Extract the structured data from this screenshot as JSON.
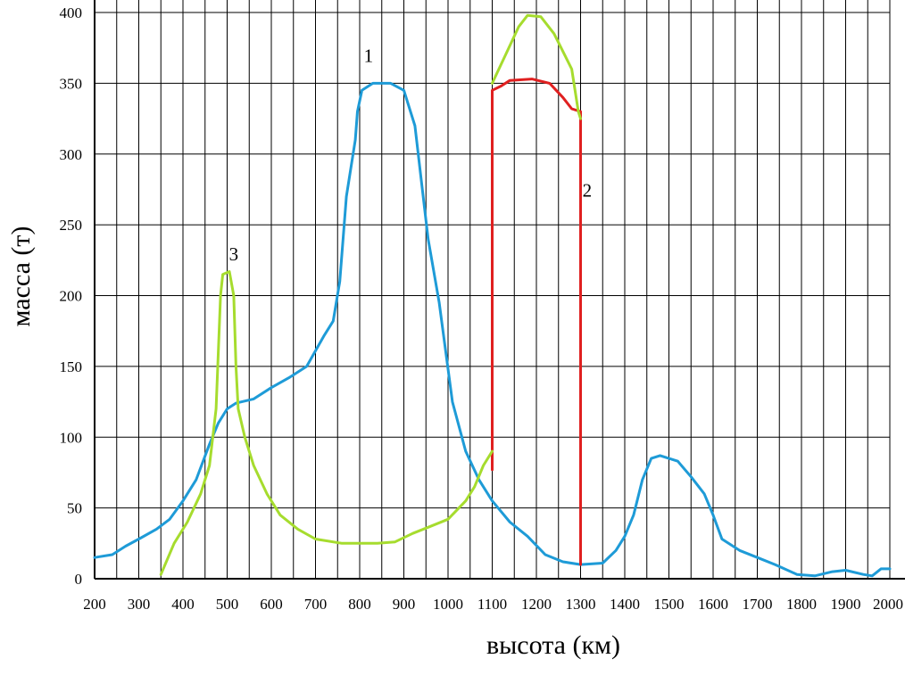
{
  "chart_data": {
    "type": "line",
    "title": "",
    "xlabel": "высота (км)",
    "ylabel": "масса (т)",
    "xlim": [
      200,
      2000
    ],
    "ylim": [
      0,
      400
    ],
    "x_ticks": [
      "200",
      "300",
      "400",
      "500",
      "600",
      "700",
      "800",
      "900",
      "1000",
      "1100",
      "1200",
      "1300",
      "1400",
      "1500",
      "1600",
      "1700",
      "1800",
      "1900",
      "2000"
    ],
    "y_ticks": [
      "0",
      "50",
      "100",
      "150",
      "200",
      "250",
      "300",
      "350",
      "400"
    ],
    "grid": true,
    "legend": "none",
    "series": [
      {
        "name": "1",
        "color": "#1e9bd7",
        "points": [
          [
            200,
            15
          ],
          [
            240,
            17
          ],
          [
            270,
            23
          ],
          [
            300,
            28
          ],
          [
            340,
            35
          ],
          [
            370,
            42
          ],
          [
            400,
            55
          ],
          [
            430,
            70
          ],
          [
            460,
            95
          ],
          [
            480,
            110
          ],
          [
            500,
            120
          ],
          [
            520,
            124
          ],
          [
            560,
            127
          ],
          [
            600,
            135
          ],
          [
            640,
            142
          ],
          [
            680,
            150
          ],
          [
            720,
            172
          ],
          [
            740,
            182
          ],
          [
            755,
            210
          ],
          [
            770,
            270
          ],
          [
            780,
            290
          ],
          [
            790,
            310
          ],
          [
            795,
            330
          ],
          [
            805,
            345
          ],
          [
            830,
            350
          ],
          [
            870,
            350
          ],
          [
            900,
            345
          ],
          [
            925,
            320
          ],
          [
            940,
            280
          ],
          [
            955,
            240
          ],
          [
            980,
            195
          ],
          [
            1010,
            125
          ],
          [
            1040,
            90
          ],
          [
            1070,
            70
          ],
          [
            1100,
            55
          ],
          [
            1140,
            40
          ],
          [
            1180,
            30
          ],
          [
            1220,
            17
          ],
          [
            1260,
            12
          ],
          [
            1300,
            10
          ],
          [
            1350,
            11
          ],
          [
            1380,
            20
          ],
          [
            1400,
            30
          ],
          [
            1420,
            45
          ],
          [
            1440,
            70
          ],
          [
            1460,
            85
          ],
          [
            1480,
            87
          ],
          [
            1520,
            83
          ],
          [
            1550,
            72
          ],
          [
            1580,
            60
          ],
          [
            1600,
            45
          ],
          [
            1620,
            28
          ],
          [
            1660,
            20
          ],
          [
            1700,
            15
          ],
          [
            1740,
            10
          ],
          [
            1790,
            3
          ],
          [
            1830,
            2
          ],
          [
            1870,
            5
          ],
          [
            1900,
            6
          ],
          [
            1940,
            3
          ],
          [
            1960,
            2
          ],
          [
            1980,
            7
          ],
          [
            2000,
            7
          ]
        ]
      },
      {
        "name": "2",
        "color": "#e02020",
        "points": [
          [
            1100,
            77
          ],
          [
            1100,
            345
          ],
          [
            1120,
            348
          ],
          [
            1140,
            352
          ],
          [
            1190,
            353
          ],
          [
            1230,
            350
          ],
          [
            1260,
            340
          ],
          [
            1280,
            332
          ],
          [
            1300,
            330
          ],
          [
            1300,
            10
          ]
        ]
      },
      {
        "name": "3",
        "color": "#a6dc2e",
        "points": [
          [
            350,
            3
          ],
          [
            380,
            25
          ],
          [
            410,
            40
          ],
          [
            440,
            60
          ],
          [
            460,
            80
          ],
          [
            475,
            120
          ],
          [
            480,
            160
          ],
          [
            485,
            200
          ],
          [
            490,
            215
          ],
          [
            505,
            217
          ],
          [
            515,
            200
          ],
          [
            520,
            150
          ],
          [
            525,
            120
          ],
          [
            540,
            100
          ],
          [
            560,
            80
          ],
          [
            590,
            60
          ],
          [
            620,
            45
          ],
          [
            660,
            35
          ],
          [
            700,
            28
          ],
          [
            760,
            25
          ],
          [
            840,
            25
          ],
          [
            880,
            26
          ],
          [
            920,
            32
          ],
          [
            960,
            37
          ],
          [
            1000,
            42
          ],
          [
            1040,
            55
          ],
          [
            1060,
            65
          ],
          [
            1080,
            80
          ],
          [
            1100,
            90
          ]
        ]
      },
      {
        "name": "3",
        "color": "#a6dc2e",
        "points": [
          [
            1100,
            350
          ],
          [
            1130,
            370
          ],
          [
            1160,
            390
          ],
          [
            1180,
            398
          ],
          [
            1210,
            397
          ],
          [
            1240,
            385
          ],
          [
            1280,
            360
          ],
          [
            1295,
            330
          ],
          [
            1300,
            325
          ]
        ]
      }
    ],
    "labels": [
      {
        "text": "1",
        "x": 820,
        "y": 365
      },
      {
        "text": "2",
        "x": 1315,
        "y": 270
      },
      {
        "text": "3",
        "x": 515,
        "y": 225
      }
    ]
  }
}
